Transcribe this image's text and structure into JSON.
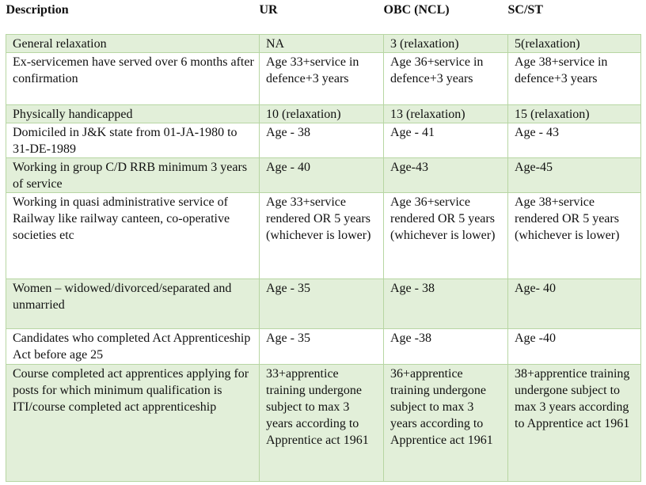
{
  "table": {
    "headers": [
      "Description",
      "UR",
      "OBC (NCL)",
      "SC/ST"
    ],
    "rows": [
      [
        "General relaxation",
        "NA",
        "3 (relaxation)",
        "5(relaxation)"
      ],
      [
        "Ex-servicemen have served over 6 months after confirmation",
        "Age 33+service in defence+3 years",
        "Age 36+service in defence+3 years",
        "Age 38+service in defence+3 years"
      ],
      [
        "Physically handicapped",
        "10 (relaxation)",
        "13 (relaxation)",
        "15 (relaxation)"
      ],
      [
        "Domiciled in J&K state from 01-JA-1980 to 31-DE-1989",
        "Age - 38",
        "Age - 41",
        "Age - 43"
      ],
      [
        "Working in group C/D RRB minimum 3 years of service",
        "Age - 40",
        "Age-43",
        "Age-45"
      ],
      [
        "Working in quasi administrative service of Railway like railway canteen, co-operative societies etc",
        "Age 33+service rendered OR 5 years (whichever is lower)",
        "Age 36+service rendered OR 5 years (whichever is lower)",
        "Age 38+service rendered OR 5 years (whichever is lower)"
      ],
      [
        "Women – widowed/divorced/separated and unmarried",
        "Age - 35",
        "Age - 38",
        "Age- 40"
      ],
      [
        "Candidates who completed Act Apprenticeship Act before age 25",
        "Age - 35",
        "Age -38",
        "Age -40"
      ],
      [
        "Course completed act apprentices applying for posts for which minimum qualification is ITI/course completed act apprenticeship",
        "33+apprentice training undergone subject to max 3 years according to Apprentice act 1961",
        "36+apprentice training undergone subject to max 3 years according to Apprentice act 1961",
        "38+apprentice training undergone subject to max 3 years according to Apprentice act 1961"
      ]
    ]
  }
}
